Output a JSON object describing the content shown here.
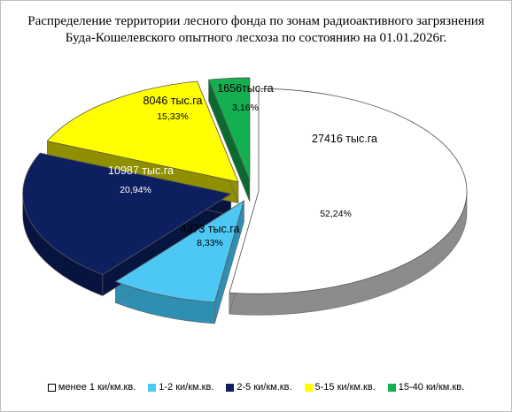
{
  "chart_data": {
    "type": "pie",
    "title": "Распределение территории лесного фонда по зонам радиоактивного загрязнения",
    "subtitle": "Буда-Кошелевского опытного лесхоза по состоянию на 01.01.2026г.",
    "legend_position": "bottom",
    "slices": [
      {
        "name": "менее 1 ки/км.кв.",
        "value": 27416,
        "label": "27416 тыс.га",
        "percent_label": "52,24%",
        "color": "#ffffff",
        "side_color": "#8c8c8c"
      },
      {
        "name": "1-2 ки/км.кв.",
        "value": 4373,
        "label": "4373 тыс.га",
        "percent_label": "8,33%",
        "color": "#4dc8f5",
        "side_color": "#2f8fb3"
      },
      {
        "name": "2-5 ки/км.кв.",
        "value": 10987,
        "label": "10987 тыс.га",
        "percent_label": "20,94%",
        "color": "#0d1f5e",
        "side_color": "#081440"
      },
      {
        "name": "5-15 ки/км.кв.",
        "value": 8046,
        "label": "8046 тыс.га",
        "percent_label": "15,33%",
        "color": "#ffff00",
        "side_color": "#8f8f00"
      },
      {
        "name": "15-40 ки/км.кв.",
        "value": 1656,
        "label": "1656тыс.га",
        "percent_label": "3,16%",
        "color": "#14b04f",
        "side_color": "#0b6b2f"
      }
    ]
  }
}
